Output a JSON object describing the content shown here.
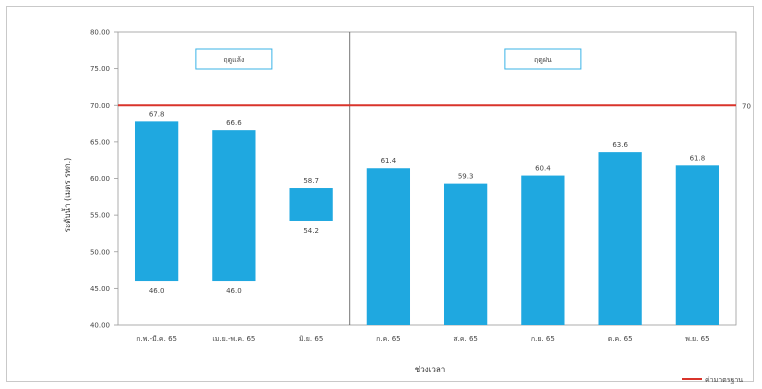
{
  "chart_data": {
    "type": "bar",
    "ylabel": "ระดับน้ำ (เมตร รทก.)",
    "xlabel": "ช่วงเวลา",
    "ylim": [
      40,
      80
    ],
    "yticks": [
      "80.00",
      "75.00",
      "70.00",
      "65.00",
      "60.00",
      "55.00",
      "50.00",
      "45.00",
      "40.00"
    ],
    "groups": [
      {
        "label": "ฤดูแล้ง",
        "span": [
          0,
          2
        ]
      },
      {
        "label": "ฤดูฝน",
        "span": [
          3,
          7
        ]
      }
    ],
    "categories": [
      "ก.พ.-มี.ค. 65",
      "เม.ย.-พ.ค. 65",
      "มิ.ย. 65",
      "ก.ค. 65",
      "ส.ค. 65",
      "ก.ย. 65",
      "ต.ค. 65",
      "พ.ย. 65"
    ],
    "bars": [
      {
        "low": 46.0,
        "high": 67.8,
        "low_label": "46.0",
        "high_label": "67.8"
      },
      {
        "low": 46.0,
        "high": 66.6,
        "low_label": "46.0",
        "high_label": "66.6"
      },
      {
        "low": 54.2,
        "high": 58.7,
        "low_label": "54.2",
        "high_label": "58.7"
      },
      {
        "low": 40.0,
        "high": 61.4,
        "high_label": "61.4"
      },
      {
        "low": 40.0,
        "high": 59.3,
        "high_label": "59.3"
      },
      {
        "low": 40.0,
        "high": 60.4,
        "high_label": "60.4"
      },
      {
        "low": 40.0,
        "high": 63.6,
        "high_label": "63.6"
      },
      {
        "low": 40.0,
        "high": 61.8,
        "high_label": "61.8"
      }
    ],
    "reference_line": {
      "value": 70.0,
      "label": "70",
      "legend": "ค่ามาตรฐาน",
      "color": "#d9342b"
    },
    "bar_color": "#1fa8e0",
    "grid": false,
    "legend_position": "bottom-right"
  }
}
